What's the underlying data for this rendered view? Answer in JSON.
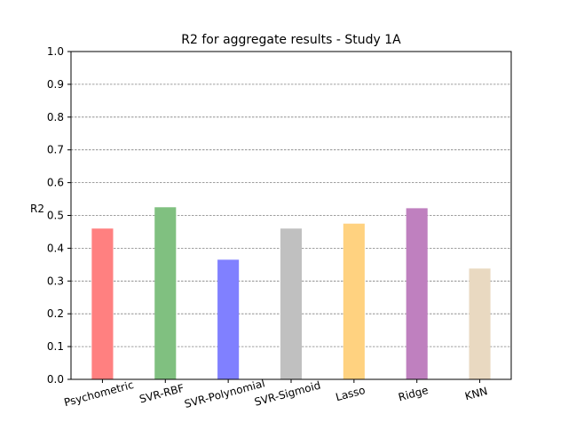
{
  "chart_data": {
    "type": "bar",
    "title": "R2 for aggregate results - Study 1A",
    "xlabel": "",
    "ylabel": "R2",
    "categories": [
      "Psychometric",
      "SVR-RBF",
      "SVR-Polynomial",
      "SVR-Sigmoid",
      "Lasso",
      "Ridge",
      "KNN"
    ],
    "values": [
      0.46,
      0.525,
      0.365,
      0.46,
      0.475,
      0.522,
      0.338
    ],
    "colors": [
      "#ff8080",
      "#80c080",
      "#8080ff",
      "#c0c0c0",
      "#ffd280",
      "#bf80bf",
      "#e9d9c1"
    ],
    "ylim": [
      0,
      1.0
    ],
    "yticks": [
      "0.0",
      "0.1",
      "0.2",
      "0.3",
      "0.4",
      "0.5",
      "0.6",
      "0.7",
      "0.8",
      "0.9",
      "1.0"
    ],
    "grid": true,
    "grid_axis": "y",
    "legend": "none"
  }
}
